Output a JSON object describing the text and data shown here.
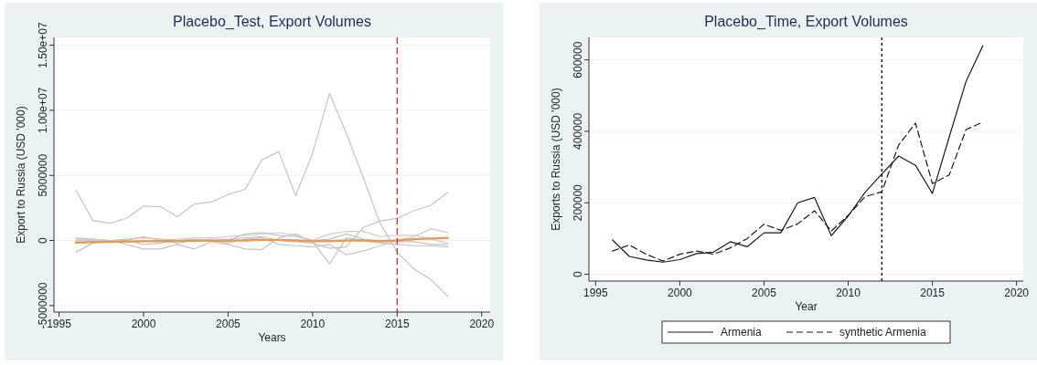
{
  "chart_data": [
    {
      "type": "line",
      "title": "Placebo_Test, Export Volumes",
      "xlabel": "Years",
      "ylabel": "Export to Russia (USD '000)",
      "x": [
        1996,
        1997,
        1998,
        1999,
        2000,
        2001,
        2002,
        2003,
        2004,
        2005,
        2006,
        2007,
        2008,
        2009,
        2010,
        2011,
        2012,
        2013,
        2014,
        2015,
        2016,
        2017,
        2018
      ],
      "xlim": [
        1994.7,
        2020.5
      ],
      "xticks": [
        1995,
        2000,
        2005,
        2010,
        2015,
        2020
      ],
      "ylim": [
        -5500000,
        15600000
      ],
      "yticks": [
        -5000000,
        0,
        5000000,
        {
          "value": 10000000,
          "label": "1.00e+07"
        },
        {
          "value": 15000000,
          "label": "1.50e+07"
        }
      ],
      "grid": "y",
      "legend": false,
      "line_style": "solid",
      "marker": "none",
      "ref_lines": [
        {
          "axis": "x",
          "value": 2015,
          "color": "#c0303a",
          "line_style": "dashed"
        }
      ],
      "series": [
        {
          "color": "#c4c4c4",
          "values": [
            3880000,
            1530000,
            1330000,
            1700000,
            2650000,
            2600000,
            1830000,
            2800000,
            2950000,
            3530000,
            3930000,
            6200000,
            6830000,
            3450000,
            6700000,
            11300000,
            8200000,
            4800000,
            1300000,
            -900000,
            -2200000,
            -3000000,
            -4300000
          ]
        },
        {
          "color": "#c4c4c4",
          "values": [
            -900000,
            -200000,
            -100000,
            0,
            300000,
            0,
            -200000,
            0,
            100000,
            100000,
            200000,
            300000,
            0,
            -100000,
            -200000,
            -600000,
            -500000,
            1000000,
            1500000,
            1700000,
            2300000,
            2700000,
            3700000
          ]
        },
        {
          "color": "#c4c4c4",
          "values": [
            200000,
            100000,
            0,
            -300000,
            -650000,
            -650000,
            -300000,
            -650000,
            -100000,
            -300000,
            -650000,
            -700000,
            200000,
            500000,
            -100000,
            -1800000,
            200000,
            0,
            -200000,
            -300000,
            -400000,
            -400000,
            -500000
          ]
        },
        {
          "color": "#c4c4c4",
          "values": [
            100000,
            0,
            -100000,
            0,
            -300000,
            -200000,
            0,
            100000,
            0,
            -200000,
            100000,
            200000,
            -300000,
            -400000,
            -500000,
            -300000,
            -1100000,
            -800000,
            -400000,
            0,
            300000,
            900000,
            600000
          ]
        },
        {
          "color": "#c8cfd4",
          "values": [
            0,
            100000,
            0,
            -100000,
            0,
            0,
            100000,
            200000,
            200000,
            300000,
            400000,
            500000,
            600000,
            400000,
            0,
            500000,
            700000,
            700000,
            300000,
            400000,
            400000,
            100000,
            -200000
          ]
        },
        {
          "color": "#c4c4c4",
          "values": [
            -200000,
            -100000,
            0,
            100000,
            200000,
            100000,
            0,
            -100000,
            0,
            0,
            500000,
            600000,
            400000,
            300000,
            0,
            100000,
            500000,
            100000,
            -100000,
            -100000,
            -100000,
            -300000,
            -300000
          ]
        },
        {
          "color": "#e89a55",
          "values": [
            -150000,
            -120000,
            -100000,
            -80000,
            -60000,
            -50000,
            -40000,
            -20000,
            -20000,
            -10000,
            0,
            50000,
            50000,
            0,
            -50000,
            -50000,
            0,
            0,
            -50000,
            0,
            100000,
            150000,
            200000
          ]
        }
      ]
    },
    {
      "type": "line",
      "title": "Placebo_Time, Export Volumes",
      "xlabel": "Year",
      "ylabel": "Exports to Russia (USD '000)",
      "x": [
        1996,
        1997,
        1998,
        1999,
        2000,
        2001,
        2002,
        2003,
        2004,
        2005,
        2006,
        2007,
        2008,
        2009,
        2010,
        2011,
        2012,
        2013,
        2014,
        2015,
        2016,
        2017,
        2018
      ],
      "xlim": [
        1994.6,
        2020.4
      ],
      "xticks": [
        1995,
        2000,
        2005,
        2010,
        2015,
        2020
      ],
      "ylim": [
        -19000,
        663000
      ],
      "yticks": [
        0,
        200000,
        400000,
        600000
      ],
      "grid": "y",
      "legend": "bottom",
      "marker": "none",
      "ref_lines": [
        {
          "axis": "x",
          "value": 2012,
          "color": "#000000",
          "line_style": "dotted"
        }
      ],
      "series": [
        {
          "name": "Armenia",
          "color": "#1a1a1a",
          "line_style": "solid",
          "values": [
            96000,
            50000,
            40000,
            34000,
            41000,
            58000,
            62000,
            91000,
            77000,
            116000,
            116000,
            200000,
            215000,
            108000,
            163000,
            229000,
            281000,
            331000,
            305000,
            226000,
            384000,
            540000,
            640000
          ]
        },
        {
          "name": "synthetic Armenia",
          "color": "#1a1a1a",
          "line_style": "dashed",
          "values": [
            65000,
            82000,
            56000,
            37000,
            56000,
            65000,
            56000,
            74000,
            100000,
            140000,
            123000,
            141000,
            178000,
            121000,
            165000,
            217000,
            231000,
            362000,
            423000,
            254000,
            278000,
            405000,
            426000
          ]
        }
      ]
    }
  ]
}
